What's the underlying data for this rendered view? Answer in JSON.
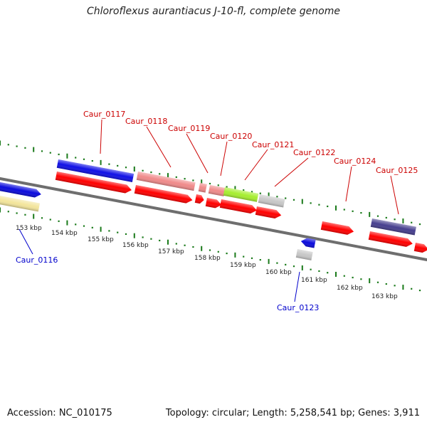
{
  "title": "Chloroflexus aurantiacus J-10-fl, complete genome",
  "footer": {
    "accession": "Accession: NC_010175",
    "summary": "Topology: circular; Length: 5,258,541 bp; Genes: 3,911"
  },
  "axis": {
    "tick_labels": [
      "153 kbp",
      "154 kbp",
      "155 kbp",
      "156 kbp",
      "157 kbp",
      "158 kbp",
      "159 kbp",
      "160 kbp",
      "161 kbp",
      "162 kbp",
      "163 kbp"
    ]
  },
  "colors": {
    "backbone": "#7a7a7a",
    "cds": "#ff0000",
    "label_top": "#cc0000",
    "label_bottom": "#0000cc",
    "tick": "#1a7a1a"
  },
  "features": {
    "top_labels": [
      "Caur_0117",
      "Caur_0118",
      "Caur_0119",
      "Caur_0120",
      "Caur_0121",
      "Caur_0122",
      "Caur_0124",
      "Caur_0125"
    ],
    "bottom_labels": [
      "Caur_0116",
      "Caur_0123"
    ]
  }
}
